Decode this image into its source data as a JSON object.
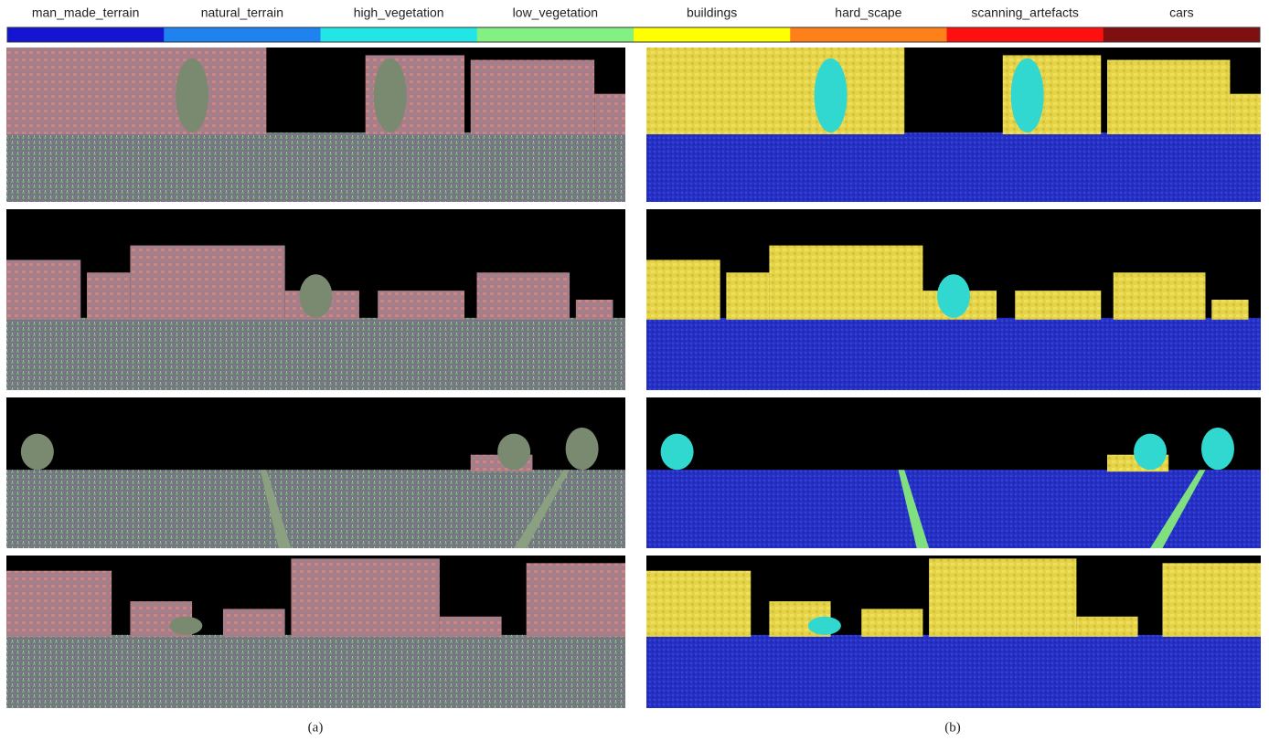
{
  "legend": {
    "items": [
      {
        "label": "man_made_terrain",
        "color": "#1414d2"
      },
      {
        "label": "natural_terrain",
        "color": "#1e82f0"
      },
      {
        "label": "high_vegetation",
        "color": "#22e6e6"
      },
      {
        "label": "low_vegetation",
        "color": "#82f082"
      },
      {
        "label": "buildings",
        "color": "#ffff00"
      },
      {
        "label": "hard_scape",
        "color": "#ff8018"
      },
      {
        "label": "scanning_artefacts",
        "color": "#ff1010"
      },
      {
        "label": "cars",
        "color": "#801010"
      }
    ]
  },
  "captions": [
    "(a)",
    "(b)"
  ]
}
